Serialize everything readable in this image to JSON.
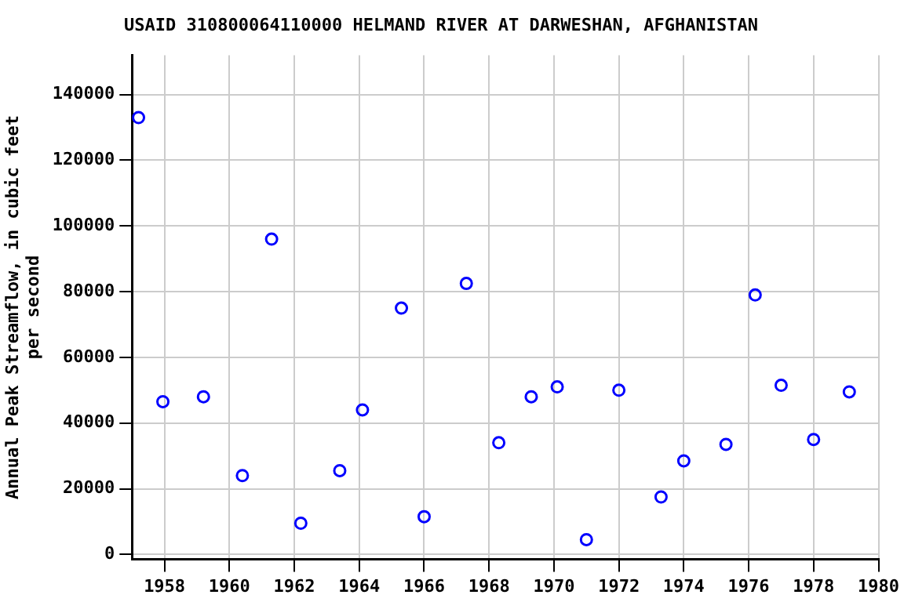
{
  "chart_data": {
    "type": "scatter",
    "title": "USAID 310800064110000 HELMAND RIVER AT DARWESHAN, AFGHANISTAN",
    "ylabel": "Annual Peak Streamflow, in cubic feet per second",
    "x": [
      1957.2,
      1957.95,
      1959.2,
      1960.4,
      1961.3,
      1962.2,
      1963.4,
      1964.1,
      1965.3,
      1966.0,
      1967.3,
      1968.3,
      1969.3,
      1970.1,
      1971.0,
      1972.0,
      1973.3,
      1974.0,
      1975.3,
      1976.2,
      1977.0,
      1978.0,
      1979.1
    ],
    "series": [
      {
        "color": "#0000ff",
        "values": [
          133000,
          46500,
          48000,
          24000,
          96000,
          9500,
          25500,
          44000,
          75000,
          11500,
          82500,
          34000,
          48000,
          51000,
          4500,
          50000,
          17500,
          28500,
          33500,
          79000,
          51500,
          35000,
          49500
        ]
      }
    ],
    "xlim": [
      1957,
      1980
    ],
    "xticks": [
      1958,
      1960,
      1962,
      1964,
      1966,
      1968,
      1970,
      1972,
      1974,
      1976,
      1978,
      1980
    ],
    "ylim": [
      -1500,
      152000
    ],
    "yticks": [
      0,
      20000,
      40000,
      60000,
      80000,
      100000,
      120000,
      140000
    ],
    "grid": true,
    "legend": false,
    "marker": "circle"
  }
}
